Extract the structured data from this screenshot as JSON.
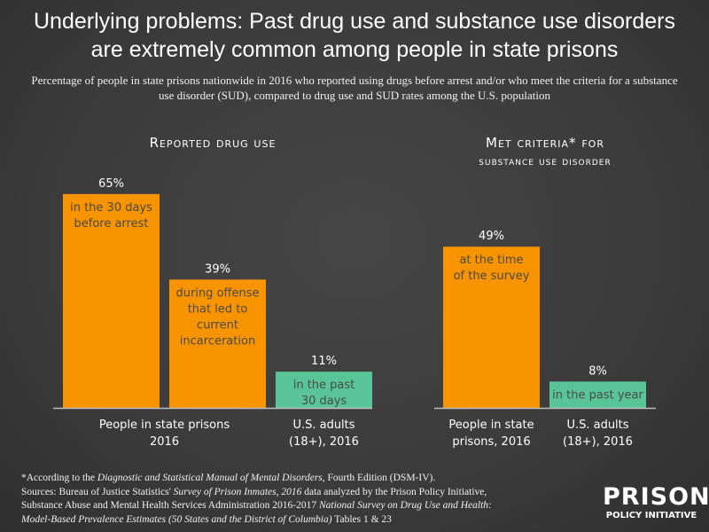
{
  "title_line1": "Underlying problems: Past drug use and substance use disorders",
  "title_line2": "are extremely common among people in state prisons",
  "subtitle": "Percentage of people in state prisons nationwide in 2016 who reported using drugs before arrest and/or who meet the criteria for a substance use disorder (SUD), compared to drug use and SUD rates among the U.S. population",
  "colors": {
    "prison": "#f79400",
    "us": "#59c596",
    "bar_text": "#4a4a4a",
    "background": "#3d3d3d"
  },
  "chart_data": [
    {
      "type": "bar",
      "title": "Reported drug use",
      "ylim": [
        0,
        70
      ],
      "grid": false,
      "bars": [
        {
          "value": 65,
          "label": "65%",
          "desc": [
            "in the 30 days",
            "before arrest"
          ],
          "group": "prison"
        },
        {
          "value": 39,
          "label": "39%",
          "desc": [
            "during offense",
            "that led to",
            "current",
            "incarceration"
          ],
          "group": "prison"
        },
        {
          "value": 11,
          "label": "11%",
          "desc": [
            "in the past",
            "30 days"
          ],
          "group": "us"
        }
      ],
      "categories": [
        {
          "lines": [
            "People in state prisons",
            "2016"
          ],
          "span": 2
        },
        {
          "lines": [
            "U.S. adults",
            "(18+), 2016"
          ],
          "span": 1
        }
      ]
    },
    {
      "type": "bar",
      "title_line1": "Met criteria* for",
      "title_line2": "substance use disorder",
      "ylim": [
        0,
        70
      ],
      "grid": false,
      "bars": [
        {
          "value": 49,
          "label": "49%",
          "desc": [
            "at the time",
            "of the survey"
          ],
          "group": "prison"
        },
        {
          "value": 8,
          "label": "8%",
          "desc": [
            "in the past year"
          ],
          "group": "us"
        }
      ],
      "categories": [
        {
          "lines": [
            "People in state",
            "prisons, 2016"
          ],
          "span": 1
        },
        {
          "lines": [
            "U.S. adults",
            "(18+), 2016"
          ],
          "span": 1
        }
      ]
    }
  ],
  "footnote": {
    "line1_a": "*According to the ",
    "line1_i": "Diagnostic and Statistical Manual of Mental Disorders",
    "line1_b": ", Fourth Edition (DSM-IV).",
    "line2_a": "Sources: Bureau of Justice Statistics' ",
    "line2_i": "Survey of Prison Inmates, 2016",
    "line2_b": " data analyzed by the Prison Policy Initiative,",
    "line3_a": "Substance Abuse and Mental Health Services Administration 2016-2017 ",
    "line3_i": "National Survey on Drug Use and Health:",
    "line4_i": "Model-Based Prevalence Estimates (50 States and the District of Columbia)",
    "line4_b": " Tables 1 & 23"
  },
  "logo": {
    "line1": "PRISON",
    "line2": "POLICY INITIATIVE"
  }
}
